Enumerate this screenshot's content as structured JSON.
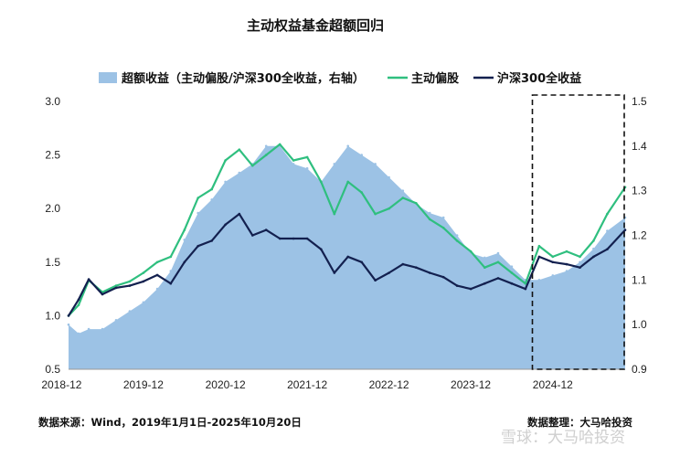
{
  "chart_data": {
    "type": "line",
    "title": "主动权益基金超额回归",
    "x_ticks": [
      "2018-12",
      "2019-12",
      "2020-12",
      "2021-12",
      "2022-12",
      "2023-12",
      "2024-12"
    ],
    "y_left": {
      "ticks": [
        "3.0",
        "2.5",
        "2.0",
        "1.5",
        "1.0",
        "0.5"
      ],
      "range": [
        0.5,
        3.0
      ]
    },
    "y_right": {
      "ticks": [
        "1.5",
        "1.4",
        "1.3",
        "1.2",
        "1.1",
        "1.0",
        "0.9"
      ],
      "range": [
        0.9,
        1.5
      ]
    },
    "x_range": [
      "2019-01-01",
      "2025-10-20"
    ],
    "legend_position": "top",
    "highlight_box": {
      "from": "2024-09-01",
      "to": "2025-10-20",
      "style": "dashed"
    },
    "series": [
      {
        "name": "超额收益（主动偏股/沪深300全收益，右轴）",
        "kind": "area",
        "axis": "right",
        "color": "#9cc2e5",
        "points": [
          [
            "2019-01-01",
            1.0
          ],
          [
            "2019-02-15",
            0.98
          ],
          [
            "2019-04-01",
            0.99
          ],
          [
            "2019-06-01",
            0.99
          ],
          [
            "2019-08-01",
            1.01
          ],
          [
            "2019-10-01",
            1.03
          ],
          [
            "2019-12-01",
            1.05
          ],
          [
            "2020-02-01",
            1.08
          ],
          [
            "2020-04-01",
            1.12
          ],
          [
            "2020-06-01",
            1.19
          ],
          [
            "2020-08-01",
            1.25
          ],
          [
            "2020-10-01",
            1.28
          ],
          [
            "2020-12-01",
            1.32
          ],
          [
            "2021-02-01",
            1.34
          ],
          [
            "2021-04-01",
            1.36
          ],
          [
            "2021-06-01",
            1.4
          ],
          [
            "2021-08-01",
            1.4
          ],
          [
            "2021-10-01",
            1.36
          ],
          [
            "2021-12-01",
            1.35
          ],
          [
            "2022-02-01",
            1.32
          ],
          [
            "2022-04-01",
            1.36
          ],
          [
            "2022-06-01",
            1.4
          ],
          [
            "2022-08-01",
            1.38
          ],
          [
            "2022-10-01",
            1.36
          ],
          [
            "2022-12-01",
            1.33
          ],
          [
            "2023-02-01",
            1.3
          ],
          [
            "2023-04-01",
            1.27
          ],
          [
            "2023-06-01",
            1.25
          ],
          [
            "2023-08-01",
            1.24
          ],
          [
            "2023-10-01",
            1.2
          ],
          [
            "2023-12-01",
            1.16
          ],
          [
            "2024-02-01",
            1.15
          ],
          [
            "2024-04-01",
            1.16
          ],
          [
            "2024-06-01",
            1.13
          ],
          [
            "2024-08-01",
            1.1
          ],
          [
            "2024-10-01",
            1.1
          ],
          [
            "2024-12-01",
            1.11
          ],
          [
            "2025-02-01",
            1.12
          ],
          [
            "2025-04-01",
            1.14
          ],
          [
            "2025-06-01",
            1.17
          ],
          [
            "2025-08-01",
            1.21
          ],
          [
            "2025-10-20",
            1.24
          ]
        ]
      },
      {
        "name": "主动偏股",
        "kind": "line",
        "axis": "left",
        "color": "#2fbf7f",
        "points": [
          [
            "2019-01-01",
            1.0
          ],
          [
            "2019-02-15",
            1.1
          ],
          [
            "2019-04-01",
            1.33
          ],
          [
            "2019-06-01",
            1.22
          ],
          [
            "2019-08-01",
            1.28
          ],
          [
            "2019-10-01",
            1.32
          ],
          [
            "2019-12-01",
            1.4
          ],
          [
            "2020-02-01",
            1.5
          ],
          [
            "2020-04-01",
            1.55
          ],
          [
            "2020-06-01",
            1.8
          ],
          [
            "2020-08-01",
            2.1
          ],
          [
            "2020-10-01",
            2.18
          ],
          [
            "2020-12-01",
            2.45
          ],
          [
            "2021-02-01",
            2.55
          ],
          [
            "2021-04-01",
            2.4
          ],
          [
            "2021-06-01",
            2.5
          ],
          [
            "2021-08-01",
            2.6
          ],
          [
            "2021-10-01",
            2.45
          ],
          [
            "2021-12-01",
            2.48
          ],
          [
            "2022-02-01",
            2.25
          ],
          [
            "2022-04-01",
            1.95
          ],
          [
            "2022-06-01",
            2.25
          ],
          [
            "2022-08-01",
            2.15
          ],
          [
            "2022-10-01",
            1.95
          ],
          [
            "2022-12-01",
            2.0
          ],
          [
            "2023-02-01",
            2.1
          ],
          [
            "2023-04-01",
            2.05
          ],
          [
            "2023-06-01",
            1.9
          ],
          [
            "2023-08-01",
            1.82
          ],
          [
            "2023-10-01",
            1.7
          ],
          [
            "2023-12-01",
            1.6
          ],
          [
            "2024-02-01",
            1.45
          ],
          [
            "2024-04-01",
            1.5
          ],
          [
            "2024-06-01",
            1.4
          ],
          [
            "2024-08-01",
            1.3
          ],
          [
            "2024-10-01",
            1.65
          ],
          [
            "2024-12-01",
            1.55
          ],
          [
            "2025-02-01",
            1.6
          ],
          [
            "2025-04-01",
            1.55
          ],
          [
            "2025-06-01",
            1.7
          ],
          [
            "2025-08-01",
            1.95
          ],
          [
            "2025-10-20",
            2.2
          ]
        ]
      },
      {
        "name": "沪深300全收益",
        "kind": "line",
        "axis": "left",
        "color": "#13204f",
        "points": [
          [
            "2019-01-01",
            1.0
          ],
          [
            "2019-02-15",
            1.15
          ],
          [
            "2019-04-01",
            1.34
          ],
          [
            "2019-06-01",
            1.2
          ],
          [
            "2019-08-01",
            1.26
          ],
          [
            "2019-10-01",
            1.28
          ],
          [
            "2019-12-01",
            1.32
          ],
          [
            "2020-02-01",
            1.38
          ],
          [
            "2020-04-01",
            1.3
          ],
          [
            "2020-06-01",
            1.5
          ],
          [
            "2020-08-01",
            1.65
          ],
          [
            "2020-10-01",
            1.7
          ],
          [
            "2020-12-01",
            1.85
          ],
          [
            "2021-02-01",
            1.95
          ],
          [
            "2021-04-01",
            1.75
          ],
          [
            "2021-06-01",
            1.8
          ],
          [
            "2021-08-01",
            1.72
          ],
          [
            "2021-10-01",
            1.72
          ],
          [
            "2021-12-01",
            1.72
          ],
          [
            "2022-02-01",
            1.62
          ],
          [
            "2022-04-01",
            1.4
          ],
          [
            "2022-06-01",
            1.55
          ],
          [
            "2022-08-01",
            1.5
          ],
          [
            "2022-10-01",
            1.33
          ],
          [
            "2022-12-01",
            1.4
          ],
          [
            "2023-02-01",
            1.48
          ],
          [
            "2023-04-01",
            1.45
          ],
          [
            "2023-06-01",
            1.4
          ],
          [
            "2023-08-01",
            1.36
          ],
          [
            "2023-10-01",
            1.28
          ],
          [
            "2023-12-01",
            1.25
          ],
          [
            "2024-02-01",
            1.3
          ],
          [
            "2024-04-01",
            1.35
          ],
          [
            "2024-06-01",
            1.3
          ],
          [
            "2024-08-01",
            1.25
          ],
          [
            "2024-10-01",
            1.55
          ],
          [
            "2024-12-01",
            1.5
          ],
          [
            "2025-02-01",
            1.48
          ],
          [
            "2025-04-01",
            1.45
          ],
          [
            "2025-06-01",
            1.55
          ],
          [
            "2025-08-01",
            1.62
          ],
          [
            "2025-10-20",
            1.8
          ]
        ]
      }
    ]
  },
  "footer": {
    "source": "数据来源：Wind，2019年1月1日-2025年10月20日",
    "compiled": "数据整理：大马哈投资",
    "watermark": "雪球：大马哈投资"
  }
}
